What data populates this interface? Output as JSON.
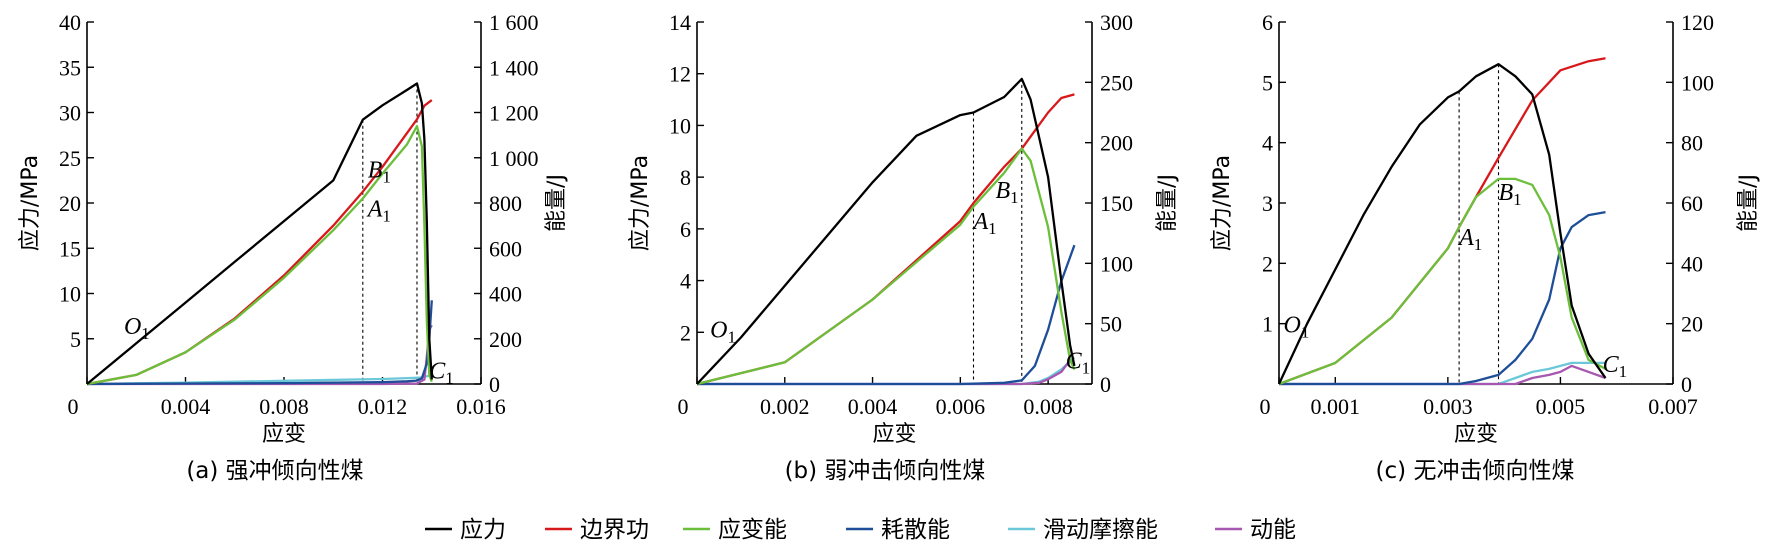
{
  "colors": {
    "应力": "#000000",
    "边界功": "#d7191c",
    "应变能": "#6cbf3a",
    "耗散能": "#1f4e99",
    "滑动摩擦能": "#6cc8d8",
    "动能": "#a757b0"
  },
  "legend": [
    "应力",
    "边界功",
    "应变能",
    "耗散能",
    "滑动摩擦能",
    "动能"
  ],
  "chart_data": [
    {
      "type": "line",
      "caption": "(a)  强冲倾向性煤",
      "xlabel": "应变",
      "ylabel": "应力/MPa",
      "y2label": "能量/J",
      "xlim": [
        0,
        0.016
      ],
      "ylim": [
        0,
        40
      ],
      "y2lim": [
        0,
        1600
      ],
      "xticks": [
        "0",
        "0.004",
        "0.008",
        "0.012",
        "0.016"
      ],
      "xtick_values": [
        0,
        0.004,
        0.008,
        0.012,
        0.016
      ],
      "yticks": [
        "5",
        "10",
        "15",
        "20",
        "25",
        "30",
        "35",
        "40"
      ],
      "ytick_values": [
        5,
        10,
        15,
        20,
        25,
        30,
        35,
        40
      ],
      "y2ticks": [
        "0",
        "200",
        "400",
        "600",
        "800",
        "1 000",
        "1 200",
        "1 400",
        "1 600"
      ],
      "y2tick_values": [
        0,
        200,
        400,
        600,
        800,
        1000,
        1200,
        1400,
        1600
      ],
      "markers": [
        {
          "label": "O",
          "sub": "1",
          "x": 0.0015,
          "y": 5.5
        },
        {
          "label": "A",
          "sub": "1",
          "x": 0.0114,
          "y": 18.5
        },
        {
          "label": "B",
          "sub": "1",
          "x": 0.0114,
          "y": 22.8
        },
        {
          "label": "C",
          "sub": "1",
          "x": 0.0139,
          "y": 0.6
        }
      ],
      "vlines": [
        {
          "x": 0.0112,
          "y": 29.2
        },
        {
          "x": 0.0134,
          "y": 33.2
        }
      ],
      "series": [
        {
          "name": "应力",
          "axis": "left",
          "x": [
            0,
            0.002,
            0.004,
            0.006,
            0.008,
            0.01,
            0.0112,
            0.012,
            0.013,
            0.0134,
            0.0136,
            0.0137,
            0.0138,
            0.0139,
            0.014
          ],
          "y": [
            0,
            4.5,
            9,
            13.5,
            18,
            22.5,
            29.2,
            30.8,
            32.5,
            33.2,
            31,
            27,
            18,
            5,
            0.5
          ]
        },
        {
          "name": "边界功",
          "axis": "right",
          "x": [
            0,
            0.002,
            0.004,
            0.006,
            0.008,
            0.01,
            0.0112,
            0.012,
            0.013,
            0.0134,
            0.0137,
            0.014
          ],
          "y": [
            0,
            40,
            140,
            290,
            480,
            700,
            850,
            960,
            1110,
            1170,
            1230,
            1255
          ]
        },
        {
          "name": "应变能",
          "axis": "right",
          "x": [
            0,
            0.002,
            0.004,
            0.006,
            0.008,
            0.01,
            0.0112,
            0.012,
            0.013,
            0.0134,
            0.0136,
            0.0137,
            0.0138,
            0.0139,
            0.014
          ],
          "y": [
            0,
            40,
            140,
            285,
            470,
            680,
            820,
            930,
            1060,
            1140,
            1050,
            700,
            280,
            40,
            10
          ]
        },
        {
          "name": "耗散能",
          "axis": "right",
          "x": [
            0,
            0.004,
            0.008,
            0.012,
            0.013,
            0.0134,
            0.0136,
            0.0138,
            0.0139,
            0.014
          ],
          "y": [
            0,
            2,
            4,
            8,
            12,
            15,
            25,
            90,
            200,
            370
          ]
        },
        {
          "name": "滑动摩擦能",
          "axis": "right",
          "x": [
            0,
            0.004,
            0.008,
            0.012,
            0.013,
            0.0135,
            0.0138,
            0.014
          ],
          "y": [
            0,
            6,
            14,
            22,
            26,
            28,
            34,
            40
          ]
        },
        {
          "name": "动能",
          "axis": "right",
          "x": [
            0,
            0.012,
            0.0134,
            0.0137,
            0.0138,
            0.0139,
            0.014
          ],
          "y": [
            0,
            0,
            2,
            20,
            120,
            240,
            260
          ]
        }
      ]
    },
    {
      "type": "line",
      "caption": "(b)  弱冲击倾向性煤",
      "xlabel": "应变",
      "ylabel": "应力/MPa",
      "y2label": "能量/J",
      "xlim": [
        0,
        0.009
      ],
      "ylim": [
        0,
        14
      ],
      "y2lim": [
        0,
        300
      ],
      "xticks": [
        "0",
        "0.002",
        "0.004",
        "0.006",
        "0.008"
      ],
      "xtick_values": [
        0,
        0.002,
        0.004,
        0.006,
        0.008
      ],
      "yticks": [
        "2",
        "4",
        "6",
        "8",
        "10",
        "12",
        "14"
      ],
      "ytick_values": [
        2,
        4,
        6,
        8,
        10,
        12,
        14
      ],
      "y2ticks": [
        "0",
        "50",
        "100",
        "150",
        "200",
        "250",
        "300"
      ],
      "y2tick_values": [
        0,
        50,
        100,
        150,
        200,
        250,
        300
      ],
      "markers": [
        {
          "label": "O",
          "sub": "1",
          "x": 0.0003,
          "y": 1.8
        },
        {
          "label": "A",
          "sub": "1",
          "x": 0.0063,
          "y": 6.0
        },
        {
          "label": "B",
          "sub": "1",
          "x": 0.0068,
          "y": 7.2
        },
        {
          "label": "C",
          "sub": "1",
          "x": 0.0084,
          "y": 0.6
        }
      ],
      "vlines": [
        {
          "x": 0.0063,
          "y": 10.5
        },
        {
          "x": 0.0074,
          "y": 11.8
        }
      ],
      "series": [
        {
          "name": "应力",
          "axis": "left",
          "x": [
            0,
            0.001,
            0.002,
            0.003,
            0.004,
            0.005,
            0.006,
            0.0063,
            0.007,
            0.0074,
            0.0076,
            0.008,
            0.0083,
            0.0085,
            0.0086
          ],
          "y": [
            0,
            1.8,
            3.8,
            5.8,
            7.8,
            9.6,
            10.4,
            10.5,
            11.1,
            11.8,
            11.0,
            8.0,
            4.0,
            1.5,
            0.7
          ]
        },
        {
          "name": "边界功",
          "axis": "right",
          "x": [
            0,
            0.002,
            0.004,
            0.006,
            0.0063,
            0.007,
            0.0074,
            0.008,
            0.0083,
            0.0086
          ],
          "y": [
            0,
            18,
            70,
            135,
            150,
            180,
            195,
            225,
            237,
            240
          ]
        },
        {
          "name": "应变能",
          "axis": "right",
          "x": [
            0,
            0.002,
            0.004,
            0.006,
            0.0063,
            0.007,
            0.0074,
            0.0076,
            0.008,
            0.0083,
            0.0085,
            0.0086
          ],
          "y": [
            0,
            18,
            70,
            132,
            147,
            175,
            195,
            185,
            130,
            60,
            20,
            12
          ]
        },
        {
          "name": "耗散能",
          "axis": "right",
          "x": [
            0,
            0.006,
            0.007,
            0.0074,
            0.0077,
            0.008,
            0.0083,
            0.0086
          ],
          "y": [
            0,
            0,
            1,
            3,
            15,
            45,
            85,
            115
          ]
        },
        {
          "name": "滑动摩擦能",
          "axis": "right",
          "x": [
            0,
            0.0074,
            0.0078,
            0.008,
            0.0083,
            0.0086
          ],
          "y": [
            0,
            0,
            2,
            5,
            12,
            22
          ]
        },
        {
          "name": "动能",
          "axis": "right",
          "x": [
            0,
            0.0074,
            0.0078,
            0.008,
            0.0083,
            0.0085,
            0.0086
          ],
          "y": [
            0,
            0,
            1,
            4,
            10,
            20,
            15
          ]
        }
      ]
    },
    {
      "type": "line",
      "caption": "(c)  无冲击倾向性煤",
      "xlabel": "应变",
      "ylabel": "应力/MPa",
      "y2label": "能量/J",
      "xlim": [
        0,
        0.007
      ],
      "ylim": [
        0,
        6
      ],
      "y2lim": [
        0,
        120
      ],
      "xticks": [
        "0",
        "0.001",
        "0.003",
        "0.005",
        "0.007"
      ],
      "xtick_values": [
        0,
        0.001,
        0.003,
        0.005,
        0.007
      ],
      "yticks": [
        "1",
        "2",
        "3",
        "4",
        "5",
        "6"
      ],
      "ytick_values": [
        1,
        2,
        3,
        4,
        5,
        6
      ],
      "y2ticks": [
        "0",
        "20",
        "40",
        "60",
        "80",
        "100",
        "120"
      ],
      "y2tick_values": [
        0,
        20,
        40,
        60,
        80,
        100,
        120
      ],
      "markers": [
        {
          "label": "O",
          "sub": "1",
          "x": 8e-05,
          "y": 0.85
        },
        {
          "label": "A",
          "sub": "1",
          "x": 0.0032,
          "y": 2.3
        },
        {
          "label": "B",
          "sub": "1",
          "x": 0.0039,
          "y": 3.05
        },
        {
          "label": "C",
          "sub": "1",
          "x": 0.00575,
          "y": 0.2
        }
      ],
      "vlines": [
        {
          "x": 0.0032,
          "y": 4.85
        },
        {
          "x": 0.0039,
          "y": 5.3
        }
      ],
      "series": [
        {
          "name": "应力",
          "axis": "left",
          "x": [
            0,
            0.0005,
            0.001,
            0.0015,
            0.002,
            0.0025,
            0.003,
            0.0032,
            0.0035,
            0.0039,
            0.0042,
            0.0045,
            0.0048,
            0.005,
            0.0052,
            0.0055,
            0.0058
          ],
          "y": [
            0,
            1.0,
            1.9,
            2.8,
            3.6,
            4.3,
            4.75,
            4.85,
            5.1,
            5.3,
            5.1,
            4.8,
            3.8,
            2.5,
            1.3,
            0.5,
            0.1
          ]
        },
        {
          "name": "边界功",
          "axis": "right",
          "x": [
            0,
            0.001,
            0.002,
            0.003,
            0.0032,
            0.0035,
            0.0039,
            0.0045,
            0.005,
            0.0055,
            0.0058
          ],
          "y": [
            0,
            7,
            22,
            45,
            52,
            62,
            75,
            94,
            104,
            107,
            108
          ]
        },
        {
          "name": "应变能",
          "axis": "right",
          "x": [
            0,
            0.001,
            0.002,
            0.003,
            0.0032,
            0.0035,
            0.0039,
            0.0042,
            0.0045,
            0.0048,
            0.005,
            0.0052,
            0.0055,
            0.0058
          ],
          "y": [
            0,
            7,
            22,
            45,
            52,
            62,
            68,
            68,
            66,
            56,
            42,
            22,
            8,
            5
          ]
        },
        {
          "name": "耗散能",
          "axis": "right",
          "x": [
            0,
            0.0032,
            0.0035,
            0.0039,
            0.0042,
            0.0045,
            0.0048,
            0.005,
            0.0052,
            0.0055,
            0.0058
          ],
          "y": [
            0,
            0,
            1,
            3,
            8,
            15,
            28,
            45,
            52,
            56,
            57
          ]
        },
        {
          "name": "滑动摩擦能",
          "axis": "right",
          "x": [
            0,
            0.0039,
            0.0042,
            0.0045,
            0.0048,
            0.005,
            0.0052,
            0.0055,
            0.0058
          ],
          "y": [
            0,
            0,
            2,
            4,
            5,
            6,
            7,
            7,
            7
          ]
        },
        {
          "name": "动能",
          "axis": "right",
          "x": [
            0,
            0.0042,
            0.0045,
            0.0048,
            0.005,
            0.0052,
            0.0055,
            0.0058
          ],
          "y": [
            0,
            0,
            2,
            3,
            4,
            6,
            4,
            2
          ]
        }
      ]
    }
  ]
}
